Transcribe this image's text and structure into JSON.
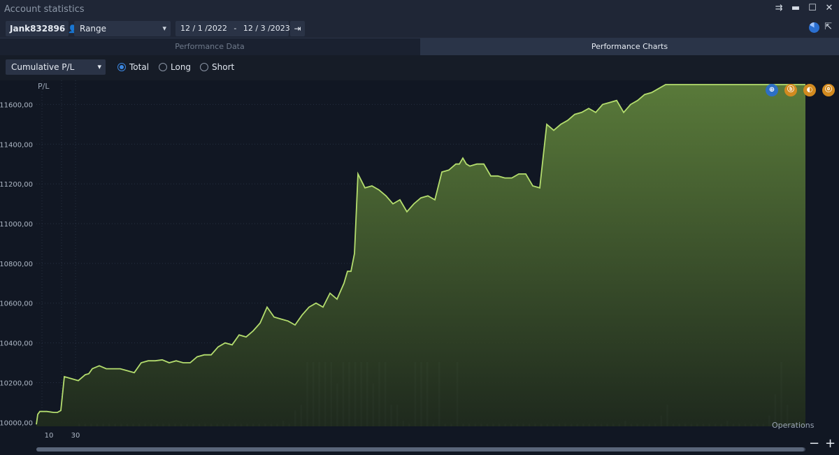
{
  "window": {
    "title": "Account statistics"
  },
  "toolbar": {
    "account": "Jank832896",
    "range_label": "Range",
    "date_from": "12 / 1 /2022",
    "date_sep": "-",
    "date_to": "12 / 3 /2023"
  },
  "tabs": [
    {
      "label": "Performance Data",
      "active": false
    },
    {
      "label": "Performance Charts",
      "active": true
    }
  ],
  "controls": {
    "metric": "Cumulative P/L",
    "radios": [
      {
        "label": "Total",
        "selected": true
      },
      {
        "label": "Long",
        "selected": false
      },
      {
        "label": "Short",
        "selected": false
      }
    ]
  },
  "colors": {
    "line": "#b4dd6e",
    "fill_top": "#5a7a3a",
    "fill_bottom": "#233021",
    "bars": "#6b7f92",
    "accent": "#3b86e0",
    "tool_orange": "#d28a1f"
  },
  "chart_data": {
    "type": "area",
    "ylabel": "P/L",
    "ylim": [
      9980,
      11700
    ],
    "ytick_labels": [
      "10000,00",
      "10200,00",
      "10400,00",
      "10600,00",
      "10800,00",
      "11000,00",
      "11200,00",
      "11400,00",
      "11600,00"
    ],
    "yticks": [
      10000,
      10200,
      10400,
      10600,
      10800,
      11000,
      11200,
      11400,
      11600
    ],
    "xtick_labels": [
      "10",
      "30"
    ],
    "secondary_label": "Operations",
    "x": [
      0,
      2,
      5,
      15,
      25,
      30,
      35,
      40,
      50,
      60,
      70,
      75,
      80,
      90,
      100,
      110,
      120,
      130,
      140,
      150,
      160,
      170,
      180,
      190,
      200,
      210,
      220,
      230,
      240,
      250,
      260,
      270,
      280,
      290,
      300,
      310,
      320,
      330,
      340,
      350,
      360,
      370,
      380,
      390,
      400,
      410,
      420,
      430,
      440,
      445,
      450,
      455,
      460,
      470,
      480,
      490,
      500,
      510,
      520,
      530,
      540,
      550,
      560,
      570,
      580,
      590,
      600,
      605,
      610,
      615,
      620,
      630,
      640,
      650,
      660,
      670,
      680,
      690,
      700,
      710,
      720,
      730,
      740,
      750,
      760,
      770,
      780,
      790,
      800,
      810,
      820,
      830,
      840,
      850,
      860,
      870,
      880,
      890,
      900,
      910,
      920,
      930,
      940,
      950,
      960,
      970,
      980,
      990,
      1000,
      1010,
      1020,
      1030,
      1040,
      1050,
      1060,
      1070,
      1080,
      1090,
      1100
    ],
    "values": [
      9990,
      10040,
      10055,
      10055,
      10050,
      10050,
      10060,
      10230,
      10220,
      10210,
      10240,
      10245,
      10270,
      10285,
      10270,
      10270,
      10270,
      10260,
      10250,
      10300,
      10310,
      10310,
      10315,
      10300,
      10310,
      10300,
      10300,
      10330,
      10340,
      10340,
      10380,
      10400,
      10390,
      10440,
      10430,
      10460,
      10500,
      10580,
      10530,
      10520,
      10510,
      10490,
      10540,
      10580,
      10600,
      10580,
      10650,
      10620,
      10700,
      10760,
      10760,
      10850,
      11250,
      11180,
      11190,
      11170,
      11140,
      11100,
      11120,
      11060,
      11100,
      11130,
      11140,
      11120,
      11260,
      11270,
      11300,
      11300,
      11330,
      11300,
      11290,
      11300,
      11300,
      11240,
      11240,
      11230,
      11230,
      11250,
      11250,
      11190,
      11180,
      11500,
      11470,
      11500,
      11520,
      11550,
      11560,
      11580,
      11560,
      11600,
      11610,
      11620,
      11560,
      11600,
      11620,
      11650,
      11660,
      11680,
      11700,
      11700,
      11700,
      11700,
      11700,
      11700,
      11700,
      11700,
      11700,
      11700,
      11700,
      11700,
      11700,
      11700,
      11700,
      11700,
      11700,
      11700,
      11700,
      11700,
      11700
    ],
    "operations": [
      1,
      1,
      1,
      1,
      1,
      1,
      1,
      1,
      1,
      1,
      1,
      1,
      1,
      1,
      1,
      1,
      1,
      1,
      1,
      1,
      1,
      1,
      1,
      1,
      1,
      1,
      1,
      1,
      1,
      1,
      1,
      1,
      1,
      1,
      2,
      1,
      6,
      8,
      24,
      24,
      24,
      24,
      24,
      16,
      24,
      24,
      24,
      24,
      24,
      16,
      24,
      24,
      8,
      8,
      2,
      1,
      24,
      24,
      24,
      1,
      24,
      1,
      1,
      24,
      1,
      1,
      1,
      1,
      1,
      1,
      1,
      1,
      1,
      1,
      1,
      1,
      1,
      1,
      1,
      1,
      1,
      1,
      1,
      1,
      1,
      1,
      1,
      1,
      1,
      1,
      1,
      2,
      1,
      1,
      1,
      1,
      1,
      4,
      8,
      1,
      1,
      1,
      1,
      1,
      1,
      1,
      1,
      1,
      2,
      1,
      1,
      1,
      1,
      1,
      1,
      4,
      12,
      24,
      8,
      1,
      1
    ]
  }
}
